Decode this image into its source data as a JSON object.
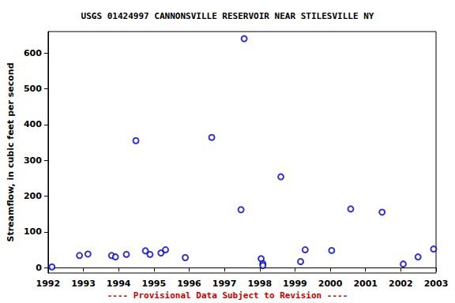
{
  "chart_data": {
    "type": "scatter",
    "title": "USGS 01424997 CANNONSVILLE RESERVOIR NEAR STILESVILLE NY",
    "y_label": "Streamflow, in cubic feet per second",
    "annotation": "---- Provisional Data Subject to Revision ----",
    "x": [
      1992.11,
      1992.89,
      1993.13,
      1993.8,
      1993.91,
      1994.22,
      1994.49,
      1994.76,
      1994.89,
      1995.2,
      1995.33,
      1995.89,
      1996.64,
      1997.47,
      1997.56,
      1998.04,
      1998.09,
      1998.09,
      1998.6,
      1999.16,
      1999.29,
      2000.04,
      2000.58,
      2001.47,
      2002.07,
      2002.49,
      2002.93
    ],
    "values": [
      2,
      34,
      38,
      34,
      30,
      37,
      355,
      47,
      37,
      41,
      50,
      28,
      364,
      162,
      640,
      25,
      11,
      6,
      254,
      17,
      50,
      48,
      164,
      155,
      10,
      30,
      52
    ],
    "color": "#0000cc",
    "marker": "open_circle",
    "xlim": [
      1992,
      2003
    ],
    "xticks": [
      1992,
      1993,
      1994,
      1995,
      1996,
      1997,
      1998,
      1999,
      2000,
      2001,
      2002,
      2003
    ],
    "ylim": [
      -15,
      660
    ],
    "yticks": [
      0,
      100,
      200,
      300,
      400,
      500,
      600
    ],
    "grid": false
  }
}
